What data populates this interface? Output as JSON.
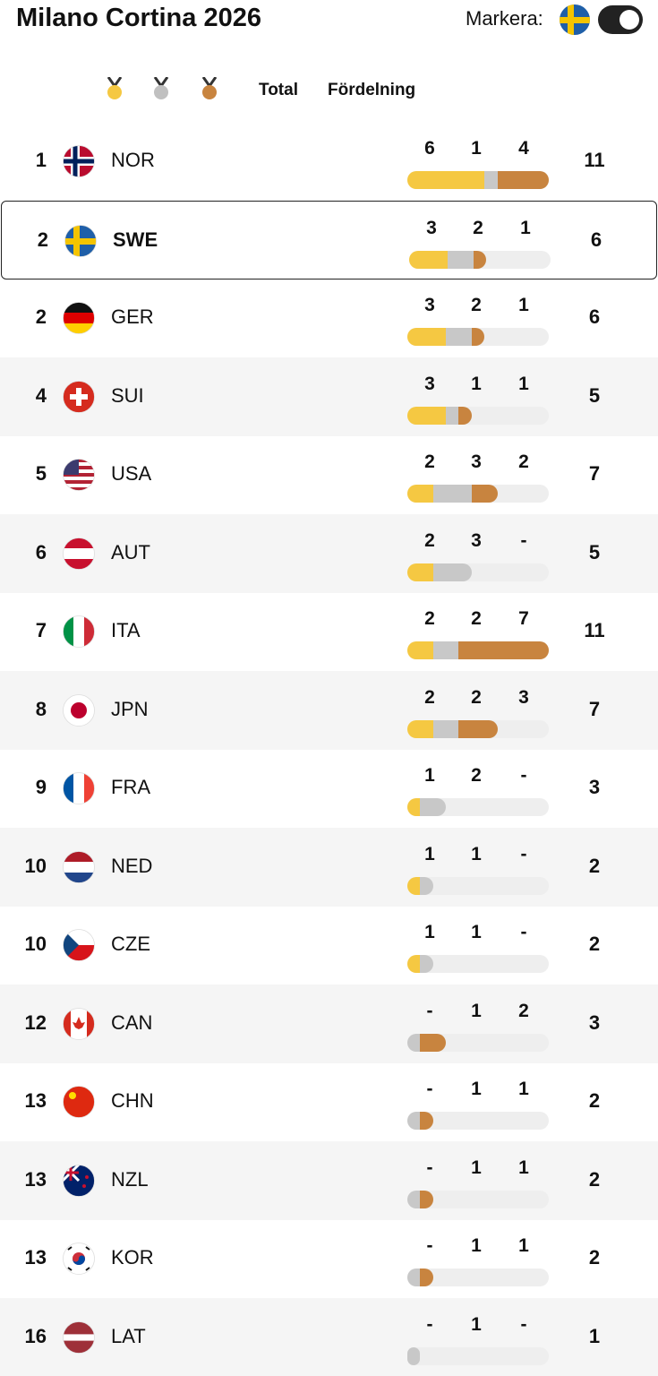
{
  "header": {
    "title": "Milano Cortina 2026",
    "toggle_label": "Markera:"
  },
  "columns": {
    "total": "Total",
    "distribution": "Fördelning"
  },
  "highlight": "SWE",
  "rows": [
    {
      "rank": 1,
      "country": "NOR",
      "gold": 6,
      "silver": 1,
      "bronze": 4,
      "total": 11
    },
    {
      "rank": 2,
      "country": "SWE",
      "gold": 3,
      "silver": 2,
      "bronze": 1,
      "total": 6
    },
    {
      "rank": 2,
      "country": "GER",
      "gold": 3,
      "silver": 2,
      "bronze": 1,
      "total": 6
    },
    {
      "rank": 4,
      "country": "SUI",
      "gold": 3,
      "silver": 1,
      "bronze": 1,
      "total": 5
    },
    {
      "rank": 5,
      "country": "USA",
      "gold": 2,
      "silver": 3,
      "bronze": 2,
      "total": 7
    },
    {
      "rank": 6,
      "country": "AUT",
      "gold": 2,
      "silver": 3,
      "bronze": {
        "value": 0,
        "label": "-"
      },
      "total": 5
    },
    {
      "rank": 7,
      "country": "ITA",
      "gold": 2,
      "silver": 2,
      "bronze": 7,
      "total": 11
    },
    {
      "rank": 8,
      "country": "JPN",
      "gold": 2,
      "silver": 2,
      "bronze": 3,
      "total": 7
    },
    {
      "rank": 9,
      "country": "FRA",
      "gold": 1,
      "silver": 2,
      "bronze": {
        "value": 0,
        "label": "-"
      },
      "total": 3
    },
    {
      "rank": 10,
      "country": "NED",
      "gold": 1,
      "silver": 1,
      "bronze": {
        "value": 0,
        "label": "-"
      },
      "total": 2
    },
    {
      "rank": 10,
      "country": "CZE",
      "gold": 1,
      "silver": 1,
      "bronze": {
        "value": 0,
        "label": "-"
      },
      "total": 2
    },
    {
      "rank": 12,
      "country": "CAN",
      "gold": {
        "value": 0,
        "label": "-"
      },
      "silver": 1,
      "bronze": 2,
      "total": 3
    },
    {
      "rank": 13,
      "country": "CHN",
      "gold": {
        "value": 0,
        "label": "-"
      },
      "silver": 1,
      "bronze": 1,
      "total": 2
    },
    {
      "rank": 13,
      "country": "NZL",
      "gold": {
        "value": 0,
        "label": "-"
      },
      "silver": 1,
      "bronze": 1,
      "total": 2
    },
    {
      "rank": 13,
      "country": "KOR",
      "gold": {
        "value": 0,
        "label": "-"
      },
      "silver": 1,
      "bronze": 1,
      "total": 2
    },
    {
      "rank": 16,
      "country": "LAT",
      "gold": {
        "value": 0,
        "label": "-"
      },
      "silver": 1,
      "bronze": {
        "value": 0,
        "label": "-"
      },
      "total": 1
    }
  ]
}
